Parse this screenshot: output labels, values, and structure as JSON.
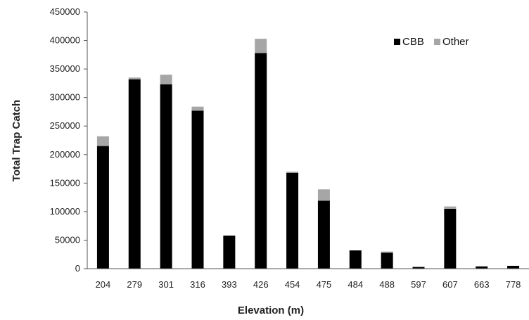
{
  "chart_data": {
    "type": "bar",
    "stacked": true,
    "categories": [
      "204",
      "279",
      "301",
      "316",
      "393",
      "426",
      "454",
      "475",
      "484",
      "488",
      "597",
      "607",
      "663",
      "778"
    ],
    "series": [
      {
        "name": "CBB",
        "color": "#000000",
        "values": [
          215000,
          332000,
          323000,
          277000,
          58000,
          378000,
          168000,
          119000,
          32000,
          28000,
          3000,
          105000,
          4000,
          5000
        ]
      },
      {
        "name": "Other",
        "color": "#a6a6a6",
        "values": [
          17000,
          3000,
          17000,
          7000,
          0,
          25000,
          2000,
          20000,
          0,
          2000,
          0,
          4000,
          0,
          0
        ]
      }
    ],
    "xlabel": "Elevation (m)",
    "ylabel": "Total Trap Catch",
    "ylim": [
      0,
      450000
    ],
    "yticks": [
      0,
      50000,
      100000,
      150000,
      200000,
      250000,
      300000,
      350000,
      400000,
      450000
    ],
    "grid": false,
    "legend_position": "top-right"
  }
}
